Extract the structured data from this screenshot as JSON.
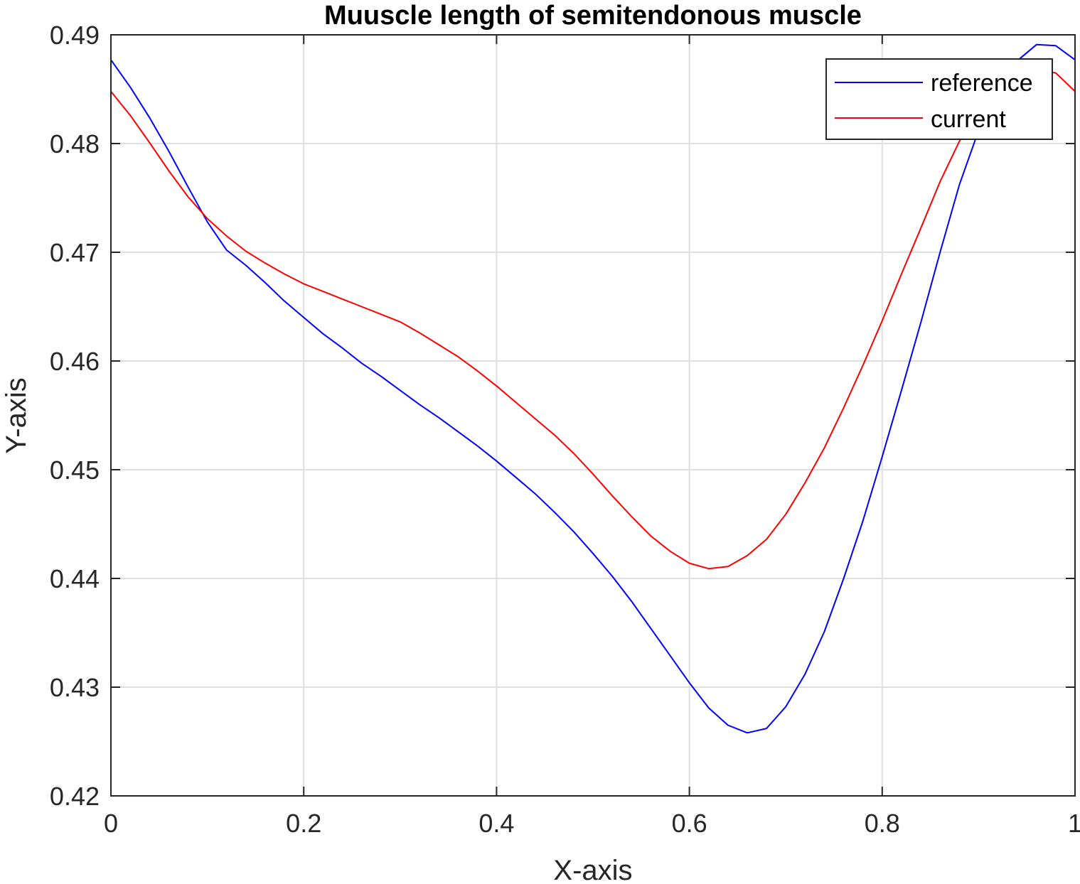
{
  "chart_data": {
    "type": "line",
    "title": "Muuscle length of semitendonous muscle",
    "xlabel": "X-axis",
    "ylabel": "Y-axis",
    "xlim": [
      0,
      1
    ],
    "ylim": [
      0.42,
      0.49
    ],
    "xticks": [
      0,
      0.2,
      0.4,
      0.6,
      0.8,
      1
    ],
    "xtick_labels": [
      "0",
      "0.2",
      "0.4",
      "0.6",
      "0.8",
      "1"
    ],
    "yticks": [
      0.42,
      0.43,
      0.44,
      0.45,
      0.46,
      0.47,
      0.48,
      0.49
    ],
    "ytick_labels": [
      "0.42",
      "0.43",
      "0.44",
      "0.45",
      "0.46",
      "0.47",
      "0.48",
      "0.49"
    ],
    "grid": true,
    "legend_position": "top-right",
    "series": [
      {
        "name": "reference",
        "color": "#0000ff",
        "points": [
          [
            0,
            0.4877
          ],
          [
            0.02,
            0.4852
          ],
          [
            0.04,
            0.4824
          ],
          [
            0.06,
            0.4793
          ],
          [
            0.08,
            0.476
          ],
          [
            0.1,
            0.4728
          ],
          [
            0.12,
            0.4702
          ],
          [
            0.14,
            0.4688
          ],
          [
            0.16,
            0.4672
          ],
          [
            0.18,
            0.4655
          ],
          [
            0.2,
            0.464
          ],
          [
            0.22,
            0.4625
          ],
          [
            0.24,
            0.4612
          ],
          [
            0.26,
            0.4598
          ],
          [
            0.28,
            0.4586
          ],
          [
            0.3,
            0.4573
          ],
          [
            0.32,
            0.456
          ],
          [
            0.34,
            0.4548
          ],
          [
            0.36,
            0.4535
          ],
          [
            0.38,
            0.4522
          ],
          [
            0.4,
            0.4508
          ],
          [
            0.42,
            0.4493
          ],
          [
            0.44,
            0.4478
          ],
          [
            0.46,
            0.4461
          ],
          [
            0.48,
            0.4443
          ],
          [
            0.5,
            0.4423
          ],
          [
            0.52,
            0.4402
          ],
          [
            0.54,
            0.4379
          ],
          [
            0.56,
            0.4354
          ],
          [
            0.58,
            0.4329
          ],
          [
            0.6,
            0.4304
          ],
          [
            0.62,
            0.4281
          ],
          [
            0.64,
            0.4265
          ],
          [
            0.66,
            0.4258
          ],
          [
            0.68,
            0.4262
          ],
          [
            0.7,
            0.4282
          ],
          [
            0.72,
            0.4312
          ],
          [
            0.74,
            0.4351
          ],
          [
            0.76,
            0.44
          ],
          [
            0.78,
            0.4453
          ],
          [
            0.8,
            0.4512
          ],
          [
            0.82,
            0.4573
          ],
          [
            0.84,
            0.4635
          ],
          [
            0.86,
            0.47
          ],
          [
            0.88,
            0.4762
          ],
          [
            0.9,
            0.4812
          ],
          [
            0.92,
            0.4845
          ],
          [
            0.94,
            0.4876
          ],
          [
            0.96,
            0.4891
          ],
          [
            0.98,
            0.489
          ],
          [
            1,
            0.4877
          ]
        ]
      },
      {
        "name": "current",
        "color": "#ff0000",
        "points": [
          [
            0,
            0.4848
          ],
          [
            0.02,
            0.4826
          ],
          [
            0.04,
            0.4801
          ],
          [
            0.06,
            0.4775
          ],
          [
            0.08,
            0.4751
          ],
          [
            0.1,
            0.4731
          ],
          [
            0.12,
            0.4715
          ],
          [
            0.14,
            0.4701
          ],
          [
            0.16,
            0.469
          ],
          [
            0.18,
            0.468
          ],
          [
            0.2,
            0.4671
          ],
          [
            0.22,
            0.4664
          ],
          [
            0.24,
            0.4657
          ],
          [
            0.26,
            0.465
          ],
          [
            0.28,
            0.4643
          ],
          [
            0.3,
            0.4636
          ],
          [
            0.32,
            0.4626
          ],
          [
            0.34,
            0.4615
          ],
          [
            0.36,
            0.4604
          ],
          [
            0.38,
            0.4591
          ],
          [
            0.4,
            0.4577
          ],
          [
            0.42,
            0.4562
          ],
          [
            0.44,
            0.4547
          ],
          [
            0.46,
            0.4532
          ],
          [
            0.48,
            0.4515
          ],
          [
            0.5,
            0.4496
          ],
          [
            0.52,
            0.4476
          ],
          [
            0.54,
            0.4457
          ],
          [
            0.56,
            0.4439
          ],
          [
            0.58,
            0.4425
          ],
          [
            0.6,
            0.4414
          ],
          [
            0.62,
            0.4409
          ],
          [
            0.64,
            0.4411
          ],
          [
            0.66,
            0.4421
          ],
          [
            0.68,
            0.4436
          ],
          [
            0.7,
            0.4459
          ],
          [
            0.72,
            0.4488
          ],
          [
            0.74,
            0.452
          ],
          [
            0.76,
            0.4557
          ],
          [
            0.78,
            0.4596
          ],
          [
            0.8,
            0.4637
          ],
          [
            0.82,
            0.468
          ],
          [
            0.84,
            0.4722
          ],
          [
            0.86,
            0.4765
          ],
          [
            0.88,
            0.4802
          ],
          [
            0.9,
            0.4829
          ],
          [
            0.92,
            0.4848
          ],
          [
            0.94,
            0.486
          ],
          [
            0.96,
            0.4868
          ],
          [
            0.98,
            0.4865
          ],
          [
            1,
            0.4848
          ]
        ]
      }
    ]
  }
}
